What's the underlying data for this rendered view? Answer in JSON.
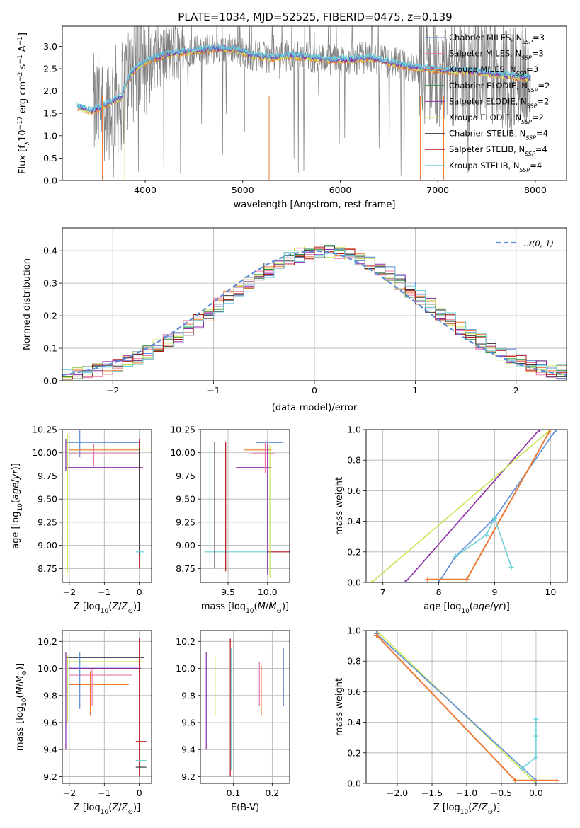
{
  "title": "PLATE=1034, MJD=52525, FIBERID=0475, z=0.139",
  "colors": {
    "chabrier_miles": "#5b8bd8",
    "salpeter_miles": "#ee77aa",
    "kroupa_miles": "#ec7a34",
    "chabrier_elodie": "#2c8a3a",
    "salpeter_elodie": "#8e2ba8",
    "kroupa_elodie": "#c6e855",
    "chabrier_stelib": "#3a3a3a",
    "salpeter_stelib": "#b01515",
    "kroupa_stelib": "#6fd1d8",
    "data": "#808080",
    "normal": "#5b8bd8"
  },
  "legend": {
    "spectrum": [
      {
        "name": "Chabrier MILES, N",
        "sub": "SSP",
        "tail": "=3",
        "key": "chabrier_miles"
      },
      {
        "name": "Salpeter MILES, N",
        "sub": "SSP",
        "tail": "=3",
        "key": "salpeter_miles"
      },
      {
        "name": "Kroupa MILES, N",
        "sub": "SSP",
        "tail": "=3",
        "key": "kroupa_miles"
      },
      {
        "name": "Chabrier ELODIE, N",
        "sub": "SSP",
        "tail": "=2",
        "key": "chabrier_elodie"
      },
      {
        "name": "Salpeter ELODIE, N",
        "sub": "SSP",
        "tail": "=2",
        "key": "salpeter_elodie"
      },
      {
        "name": "Kroupa ELODIE, N",
        "sub": "SSP",
        "tail": "=2",
        "key": "kroupa_elodie"
      },
      {
        "name": "Chabrier STELIB, N",
        "sub": "SSP",
        "tail": "=4",
        "key": "chabrier_stelib"
      },
      {
        "name": "Salpeter STELIB, N",
        "sub": "SSP",
        "tail": "=4",
        "key": "salpeter_stelib"
      },
      {
        "name": "Kroupa STELIB, N",
        "sub": "SSP",
        "tail": "=4",
        "key": "kroupa_stelib"
      }
    ],
    "normal_label": "𝒩(0, 1)"
  },
  "chart_data": [
    {
      "id": "spectrum",
      "type": "line",
      "xlabel": "wavelength [Angstrom, rest frame]",
      "ylabel_parts": [
        "Flux [f",
        "λ",
        "10",
        "−17",
        " erg cm",
        "−2",
        " s",
        "−1",
        " A",
        "−1",
        "]"
      ],
      "xlim": [
        3150,
        8320
      ],
      "ylim": [
        0,
        3.45
      ],
      "xticks": [
        4000,
        5000,
        6000,
        7000,
        8000
      ],
      "yticks": [
        0.0,
        0.5,
        1.0,
        1.5,
        2.0,
        2.5,
        3.0
      ],
      "model_anchor_points": {
        "x": [
          3300,
          3450,
          3550,
          3650,
          3750,
          3850,
          3950,
          4100,
          4300,
          4500,
          4700,
          4900,
          5100,
          5300,
          5500,
          5700,
          5900,
          6100,
          6300,
          6500,
          6700,
          6900,
          7100,
          7300,
          7500,
          7700,
          7900
        ],
        "y": [
          1.65,
          1.55,
          1.65,
          1.75,
          1.85,
          2.4,
          2.6,
          2.75,
          2.85,
          2.9,
          2.95,
          2.95,
          2.8,
          2.75,
          2.8,
          2.75,
          2.7,
          2.7,
          2.75,
          2.65,
          2.55,
          2.5,
          2.45,
          2.45,
          2.4,
          2.35,
          2.3
        ]
      }
    },
    {
      "id": "residuals",
      "type": "histogram",
      "xlabel": "(data-model)/error",
      "ylabel": "Normed distribution",
      "xlim": [
        -2.5,
        2.5
      ],
      "ylim": [
        0,
        0.47
      ],
      "xticks": [
        -2,
        -1,
        0,
        1,
        2
      ],
      "yticks": [
        0.0,
        0.1,
        0.2,
        0.3,
        0.4
      ],
      "bin_width": 0.1,
      "normal": {
        "mean": 0,
        "sigma": 1
      }
    },
    {
      "id": "age_vs_Z",
      "type": "errorbar",
      "xlabel": "Z [log₁₀(Z/Z☉)]",
      "ylabel": "age  [log₁₀(age/yr)]",
      "xlim": [
        -2.2,
        0.35
      ],
      "ylim": [
        8.6,
        10.25
      ],
      "xticks": [
        -2,
        -1,
        0
      ],
      "yticks": [
        8.75,
        9.0,
        9.25,
        9.5,
        9.75,
        10.0,
        10.25
      ]
    },
    {
      "id": "age_vs_mass",
      "type": "errorbar",
      "xlabel": "mass [log₁₀(M/M☉)]",
      "xlim": [
        9.15,
        10.28
      ],
      "ylim": [
        8.6,
        10.25
      ],
      "xticks": [
        9.5,
        10.0
      ],
      "yticks": [
        8.75,
        9.0,
        9.25,
        9.5,
        9.75,
        10.0,
        10.25
      ]
    },
    {
      "id": "mass_weight_vs_age",
      "type": "line",
      "xlabel": "age  [log₁₀(age/yr)]",
      "ylabel": "mass weight",
      "xlim": [
        6.7,
        10.3
      ],
      "ylim": [
        0,
        1.0
      ],
      "xticks": [
        7,
        8,
        9,
        10
      ],
      "yticks": [
        0.0,
        0.2,
        0.4,
        0.6,
        0.8,
        1.0
      ],
      "series": [
        {
          "key": "chabrier_miles",
          "x": [
            8.0,
            8.3,
            9.0,
            10.1
          ],
          "y": [
            0.0,
            0.17,
            0.42,
            1.0
          ]
        },
        {
          "key": "salpeter_elodie",
          "x": [
            7.4,
            9.8
          ],
          "y": [
            0.0,
            1.0
          ]
        },
        {
          "key": "kroupa_elodie",
          "x": [
            6.8,
            10.0
          ],
          "y": [
            0.0,
            1.0
          ]
        },
        {
          "key": "kroupa_miles",
          "x": [
            7.8,
            8.5,
            10.0
          ],
          "y": [
            0.02,
            0.02,
            1.0
          ]
        },
        {
          "key": "kroupa_stelib",
          "x": [
            8.3,
            8.85,
            9.0,
            9.3
          ],
          "y": [
            0.17,
            0.31,
            0.42,
            0.1
          ]
        }
      ]
    },
    {
      "id": "mass_vs_Z",
      "type": "errorbar",
      "xlabel": "Z [log₁₀(Z/Z☉)]",
      "ylabel": "mass [log₁₀(M/M☉)]",
      "xlim": [
        -2.2,
        0.35
      ],
      "ylim": [
        9.15,
        10.28
      ],
      "xticks": [
        -2,
        -1,
        0
      ],
      "yticks": [
        9.2,
        9.4,
        9.6,
        9.8,
        10.0,
        10.2
      ]
    },
    {
      "id": "mass_vs_ebv",
      "type": "errorbar",
      "xlabel": "E(B-V)",
      "xlim": [
        0.015,
        0.245
      ],
      "ylim": [
        9.15,
        10.28
      ],
      "xticks": [
        0.1,
        0.2
      ],
      "yticks": [
        9.2,
        9.4,
        9.6,
        9.8,
        10.0,
        10.2
      ]
    },
    {
      "id": "mass_weight_vs_Z",
      "type": "line",
      "xlabel": "Z [log₁₀(Z/Z☉)]",
      "ylabel": "mass weight",
      "xlim": [
        -2.45,
        0.45
      ],
      "ylim": [
        0,
        1.0
      ],
      "xticks": [
        -2.0,
        -1.5,
        -1.0,
        -0.5,
        0.0
      ],
      "yticks": [
        0.0,
        0.2,
        0.4,
        0.6,
        0.8,
        1.0
      ],
      "series": [
        {
          "key": "kroupa_elodie",
          "x": [
            -2.3,
            0.0
          ],
          "y": [
            1.0,
            0.0
          ]
        },
        {
          "key": "chabrier_miles",
          "x": [
            -2.3,
            0.0
          ],
          "y": [
            0.98,
            0.02
          ]
        },
        {
          "key": "kroupa_miles",
          "x": [
            -2.3,
            -0.3,
            0.3
          ],
          "y": [
            0.97,
            0.02,
            0.02
          ]
        },
        {
          "key": "kroupa_stelib",
          "x": [
            -0.2,
            0.0,
            0.0,
            0.0
          ],
          "y": [
            0.1,
            0.17,
            0.31,
            0.42
          ]
        }
      ]
    }
  ]
}
